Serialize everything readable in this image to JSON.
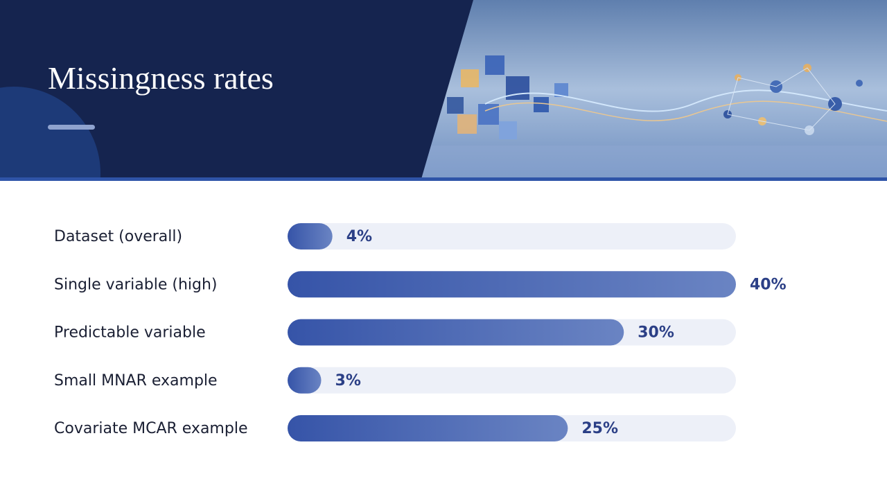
{
  "chart_data": {
    "type": "bar",
    "orientation": "horizontal",
    "title": "Missingness rates",
    "categories": [
      "Dataset (overall)",
      "Single variable (high)",
      "Predictable variable",
      "Small MNAR example",
      "Covariate MCAR example"
    ],
    "values": [
      4,
      40,
      30,
      3,
      25
    ],
    "value_labels": [
      "4%",
      "40%",
      "30%",
      "3%",
      "25%"
    ],
    "color": "#3f5eae"
  }
}
